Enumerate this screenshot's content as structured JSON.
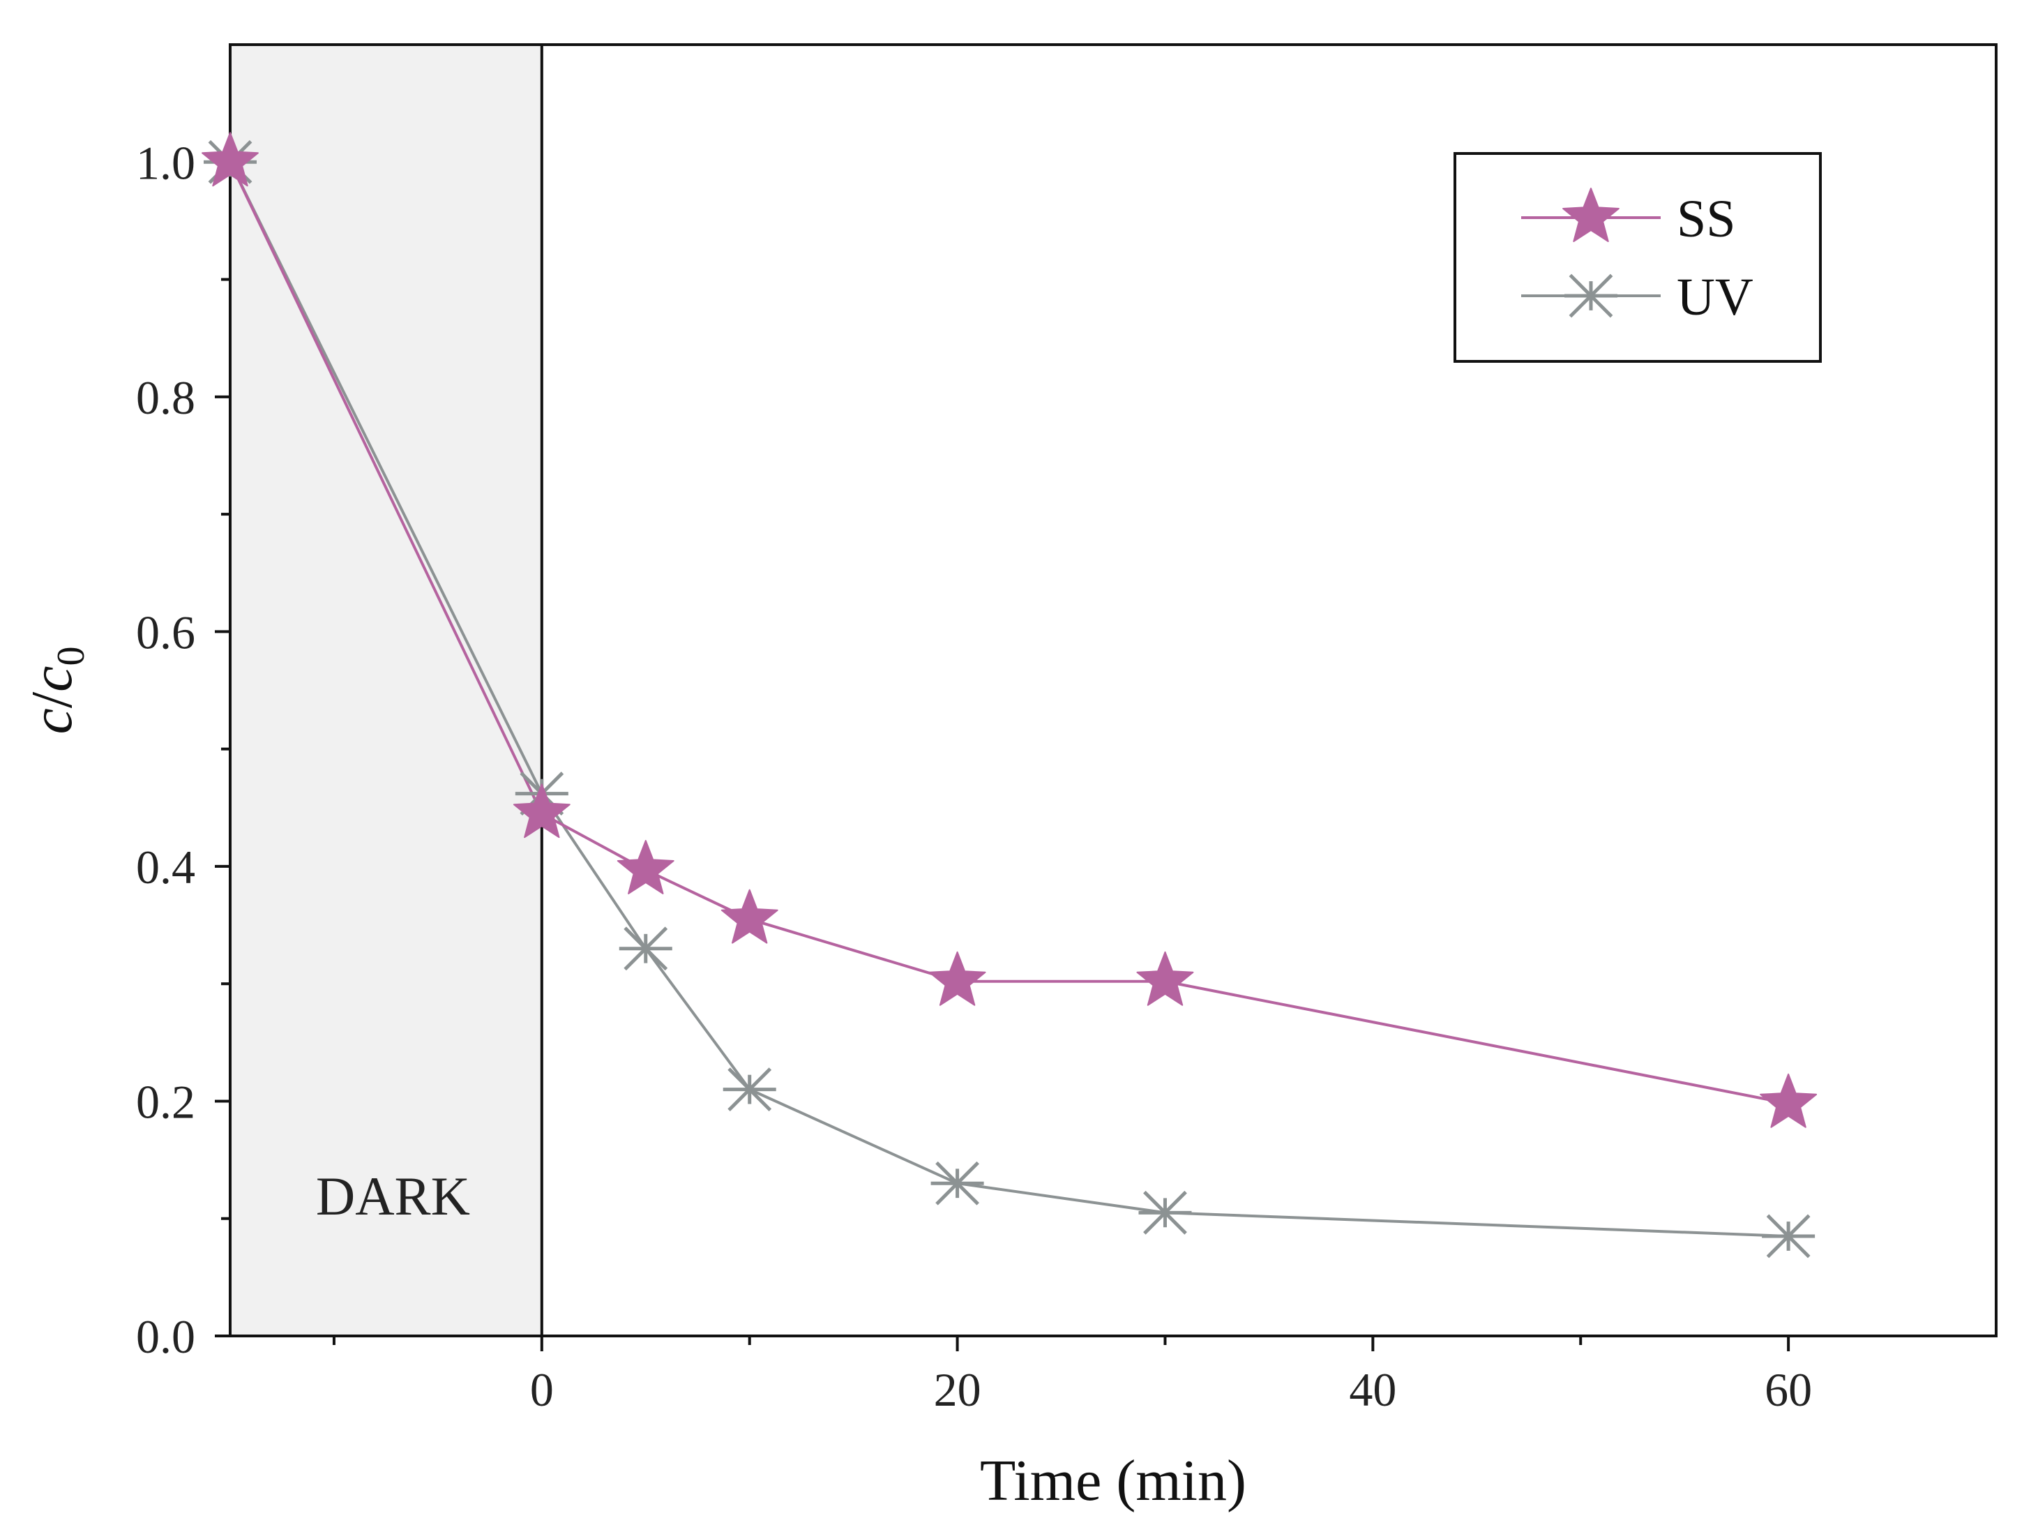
{
  "chart_data": {
    "type": "line",
    "title": "",
    "xlabel": "Time (min)",
    "ylabel_main": "c",
    "ylabel_slash": "/",
    "ylabel_sub_base": "c",
    "ylabel_subscript": "0",
    "xlim": [
      -15,
      70
    ],
    "ylim": [
      0.0,
      1.1
    ],
    "x_ticks": [
      0,
      20,
      40,
      60
    ],
    "x_tick_labels": [
      "0",
      "20",
      "40",
      "60"
    ],
    "x_minor_ticks": [
      -10,
      10,
      30,
      50
    ],
    "y_ticks": [
      0.0,
      0.2,
      0.4,
      0.6,
      0.8,
      1.0
    ],
    "y_tick_labels": [
      "0.0",
      "0.2",
      "0.4",
      "0.6",
      "0.8",
      "1.0"
    ],
    "y_minor_ticks": [
      0.1,
      0.3,
      0.5,
      0.7,
      0.9
    ],
    "grid": false,
    "shaded_region": {
      "x_start": -15,
      "x_end": 0,
      "label": "DARK",
      "color": "#f1f1f1"
    },
    "legend_position": "top-right",
    "series": [
      {
        "name": "SS",
        "marker": "star",
        "color": "#b5639f",
        "x": [
          -15,
          0,
          5,
          10,
          20,
          30,
          60
        ],
        "y": [
          1.0,
          0.445,
          0.397,
          0.355,
          0.302,
          0.302,
          0.198
        ]
      },
      {
        "name": "UV",
        "marker": "asterisk",
        "color": "#8c9293",
        "x": [
          -15,
          0,
          5,
          10,
          20,
          30,
          60
        ],
        "y": [
          1.0,
          0.462,
          0.33,
          0.21,
          0.13,
          0.105,
          0.085
        ]
      }
    ]
  }
}
